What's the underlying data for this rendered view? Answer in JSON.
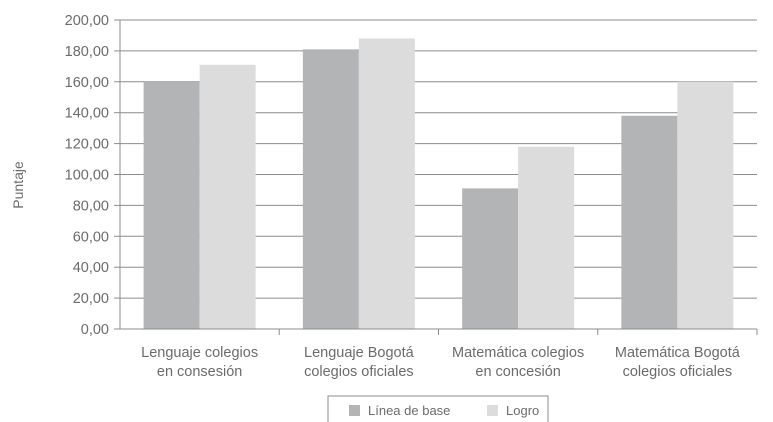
{
  "chart_data": {
    "type": "bar",
    "title": "",
    "xlabel": "",
    "ylabel": "Puntaje",
    "ylim": [
      0,
      200
    ],
    "y_ticks": [
      "0,00",
      "20,00",
      "40,00",
      "60,00",
      "80,00",
      "100,00",
      "120,00",
      "140,00",
      "160,00",
      "180,00",
      "200,00"
    ],
    "grid": true,
    "legend_position": "bottom",
    "categories": [
      [
        "Lenguaje colegios",
        "en consesión"
      ],
      [
        "Lenguaje Bogotá",
        "colegios oficiales"
      ],
      [
        "Matemática colegios",
        "en concesión"
      ],
      [
        "Matemática Bogotá",
        "colegios oficiales"
      ]
    ],
    "series": [
      {
        "name": "Línea de base",
        "color": "#b2b4b5",
        "values": [
          160,
          181,
          91,
          138
        ]
      },
      {
        "name": "Logro",
        "color": "#dcdcdd",
        "values": [
          171,
          188,
          118,
          160
        ]
      }
    ]
  }
}
